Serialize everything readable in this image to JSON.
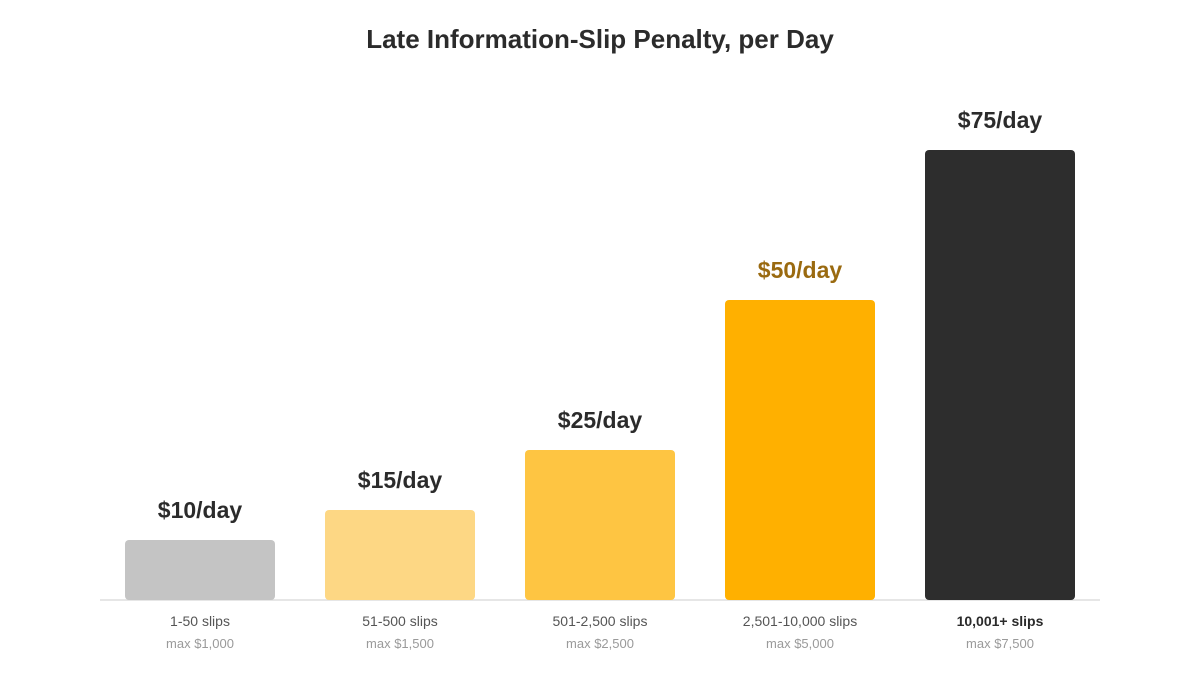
{
  "chart_data": {
    "type": "bar",
    "title": "Late Information-Slip Penalty, per Day",
    "categories": [
      "1-50 slips",
      "51-500 slips",
      "501-2,500 slips",
      "2,501-10,000 slips",
      "10,001+ slips"
    ],
    "values": [
      10,
      15,
      25,
      50,
      75
    ],
    "value_labels": [
      "$10/day",
      "$15/day",
      "$25/day",
      "$50/day",
      "$75/day"
    ],
    "sub_labels": [
      "max $1,000",
      "max $1,500",
      "max $2,500",
      "max $5,000",
      "max $7,500"
    ],
    "bar_colors": [
      "#c4c4c4",
      "#fdd784",
      "#fec542",
      "#ffb000",
      "#2d2d2d"
    ],
    "value_label_colors": [
      "#2b2b2b",
      "#2b2b2b",
      "#2b2b2b",
      "#9a6a10",
      "#2b2b2b"
    ],
    "emphasized_category_index": 4,
    "xlabel": "",
    "ylabel": "",
    "ylim": [
      0,
      75
    ],
    "grid": false,
    "axis_color": "#dddddd"
  }
}
